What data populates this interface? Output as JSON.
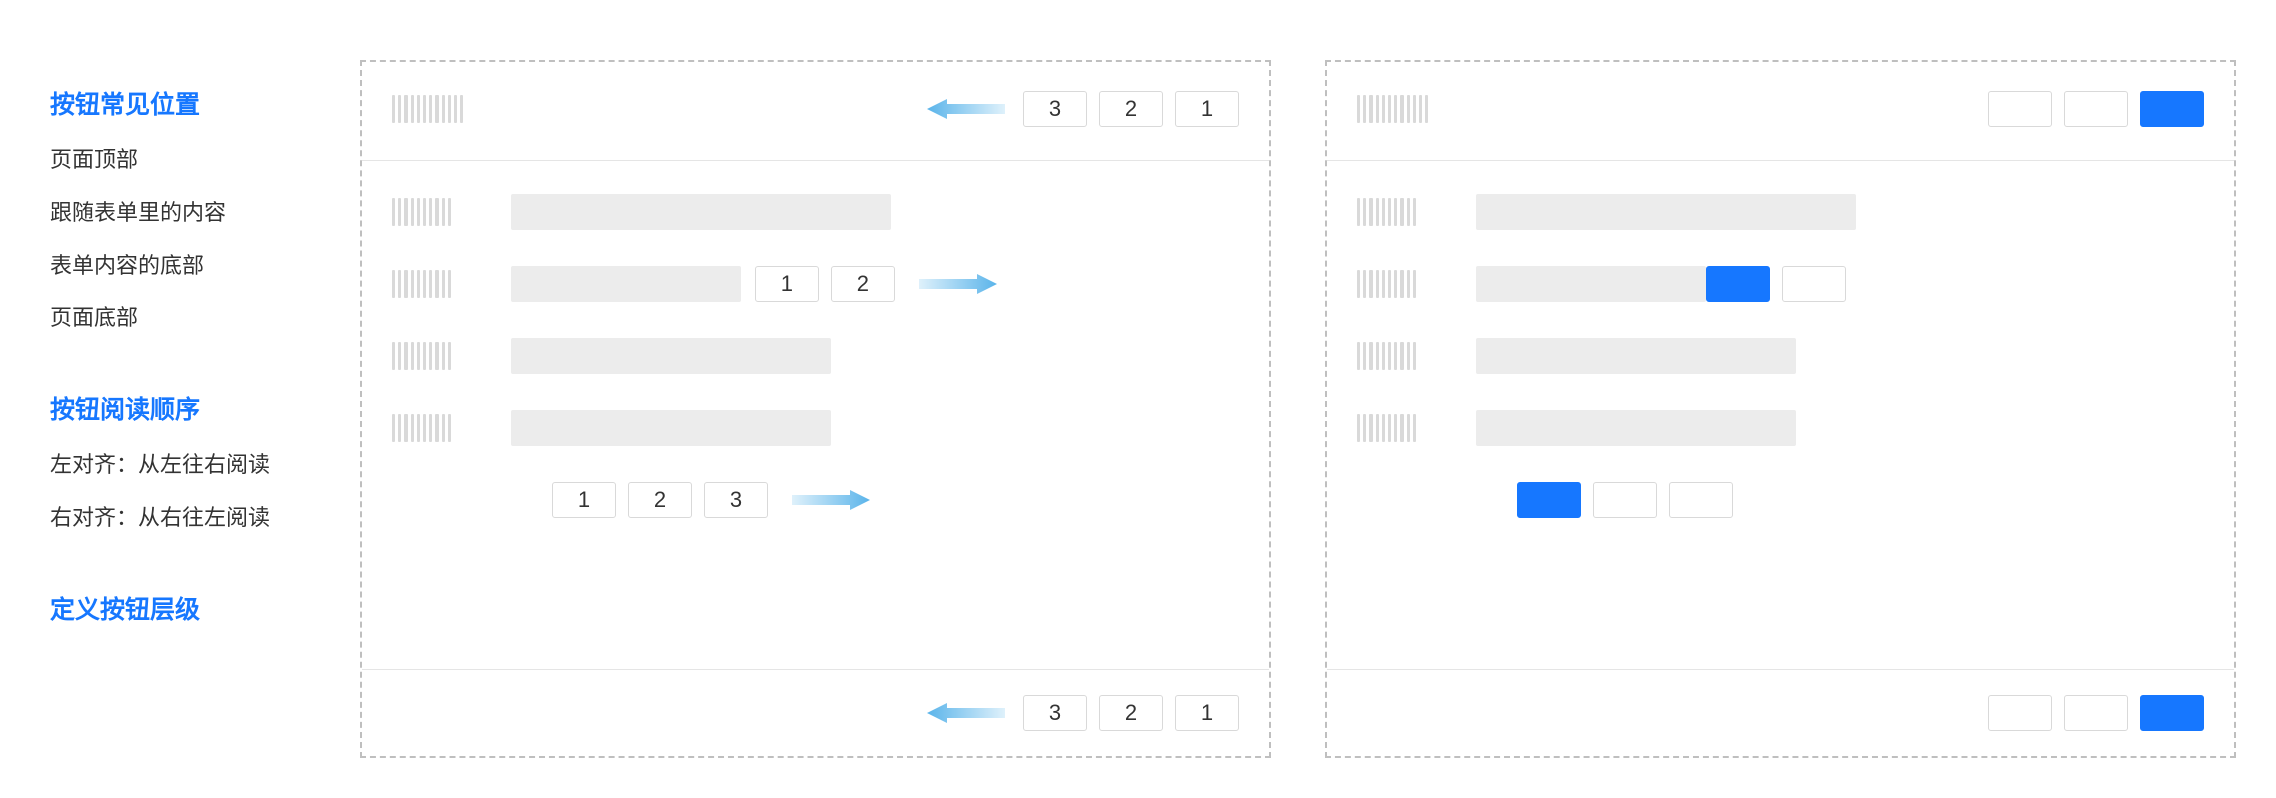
{
  "colors": {
    "accent": "#1677ff",
    "arrow_dark": "#5ab4ea",
    "arrow_light": "#dff1fb",
    "border_dashed": "#bfbfbf",
    "grey_bar": "#ececec",
    "stripe": "#d9d9d9",
    "text": "#333333",
    "divider": "#e5e5e5"
  },
  "sidebar": {
    "section1": {
      "title": "按钮常见位置",
      "items": [
        "页面顶部",
        "跟随表单里的内容",
        "表单内容的底部",
        "页面底部"
      ]
    },
    "section2": {
      "title": "按钮阅读顺序",
      "items": [
        "左对齐：从左往右阅读",
        "右对齐：从右往左阅读"
      ]
    },
    "section3": {
      "title": "定义按钮层级"
    }
  },
  "panel_left": {
    "header_btns": [
      "3",
      "2",
      "1"
    ],
    "row2_btns": [
      "1",
      "2"
    ],
    "row4_btns": [
      "1",
      "2",
      "3"
    ],
    "footer_btns": [
      "3",
      "2",
      "1"
    ]
  },
  "layout": {
    "btn_width": 64,
    "btn_height": 36,
    "stripe_count_narrow": 10,
    "stripe_count_wide": 12
  }
}
